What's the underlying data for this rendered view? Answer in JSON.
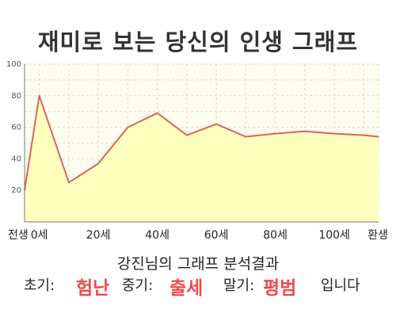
{
  "chart_data": {
    "type": "area",
    "title": "재미로 보는 당신의 인생 그래프",
    "x": [
      -5,
      0,
      10,
      20,
      30,
      40,
      50,
      60,
      70,
      80,
      90,
      100,
      110,
      115
    ],
    "values": [
      20,
      80,
      25,
      37,
      60,
      69,
      55,
      62,
      54,
      56,
      57.5,
      56,
      55,
      54
    ],
    "x_tick_labels": [
      "전생",
      "0세",
      "20세",
      "40세",
      "60세",
      "80세",
      "100세",
      "환생"
    ],
    "y_ticks": [
      20,
      40,
      60,
      80,
      100
    ],
    "ylim": [
      0,
      100
    ],
    "grid": true,
    "colors": {
      "line": "#e06060",
      "fill": "#ffffbe",
      "plot_bg": "#fefef0",
      "grid": "#dcdcc0",
      "axis": "#777777"
    }
  },
  "analysis": {
    "title": "강진님의 그래프 분석결과",
    "early_label": "초기:",
    "early_value": "험난",
    "middle_label": "중기:",
    "middle_value": "출세",
    "late_label": "말기:",
    "late_value": "평범",
    "ending": "입니다"
  }
}
